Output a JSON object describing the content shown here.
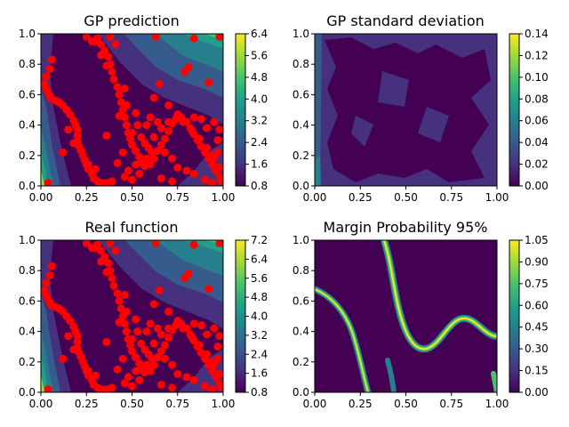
{
  "figure": {
    "layout": "2x2 grid of contour plots with colorbars"
  },
  "chart_data": [
    {
      "type": "heatmap",
      "title": "GP prediction",
      "xlim": [
        0,
        1
      ],
      "ylim": [
        0,
        1
      ],
      "xticks": [
        "0.00",
        "0.25",
        "0.50",
        "0.75",
        "1.00"
      ],
      "yticks": [
        "0.0",
        "0.2",
        "0.4",
        "0.6",
        "0.8",
        "1.0"
      ],
      "colorbar_ticks": [
        "0.8",
        "1.6",
        "2.4",
        "3.2",
        "4.0",
        "4.8",
        "5.6",
        "6.4"
      ],
      "colorbar_range": [
        0.8,
        6.4
      ],
      "colormap": "viridis",
      "scatter_color": "#ff0000",
      "has_scatter": true
    },
    {
      "type": "heatmap",
      "title": "GP standard deviation",
      "xlim": [
        0,
        1
      ],
      "ylim": [
        0,
        1
      ],
      "xticks": [
        "0.00",
        "0.25",
        "0.50",
        "0.75",
        "1.00"
      ],
      "yticks": [
        "0.0",
        "0.2",
        "0.4",
        "0.6",
        "0.8",
        "1.0"
      ],
      "colorbar_ticks": [
        "0.00",
        "0.02",
        "0.04",
        "0.06",
        "0.08",
        "0.10",
        "0.12",
        "0.14"
      ],
      "colorbar_range": [
        0.0,
        0.14
      ],
      "colormap": "viridis",
      "has_scatter": false
    },
    {
      "type": "heatmap",
      "title": "Real function",
      "xlim": [
        0,
        1
      ],
      "ylim": [
        0,
        1
      ],
      "xticks": [
        "0.00",
        "0.25",
        "0.50",
        "0.75",
        "1.00"
      ],
      "yticks": [
        "0.0",
        "0.2",
        "0.4",
        "0.6",
        "0.8",
        "1.0"
      ],
      "colorbar_ticks": [
        "0.8",
        "1.6",
        "2.4",
        "3.2",
        "4.0",
        "4.8",
        "5.6",
        "6.4",
        "7.2"
      ],
      "colorbar_range": [
        0.8,
        7.2
      ],
      "colormap": "viridis",
      "scatter_color": "#ff0000",
      "has_scatter": true
    },
    {
      "type": "heatmap",
      "title": "Margin Probability 95%",
      "xlim": [
        0,
        1
      ],
      "ylim": [
        0,
        1
      ],
      "xticks": [
        "0.00",
        "0.25",
        "0.50",
        "0.75",
        "1.00"
      ],
      "yticks": [
        "0.0",
        "0.2",
        "0.4",
        "0.6",
        "0.8",
        "1.0"
      ],
      "colorbar_ticks": [
        "0.00",
        "0.15",
        "0.30",
        "0.45",
        "0.60",
        "0.75",
        "0.90",
        "1.05"
      ],
      "colorbar_range": [
        0.0,
        1.05
      ],
      "colormap": "viridis",
      "has_scatter": false
    }
  ],
  "scatter_points": [
    [
      0.04,
      0.02
    ],
    [
      0.06,
      0.83
    ],
    [
      0.05,
      0.77
    ],
    [
      0.03,
      0.72
    ],
    [
      0.02,
      0.67
    ],
    [
      0.03,
      0.64
    ],
    [
      0.04,
      0.61
    ],
    [
      0.05,
      0.59
    ],
    [
      0.06,
      0.57
    ],
    [
      0.08,
      0.56
    ],
    [
      0.1,
      0.55
    ],
    [
      0.12,
      0.53
    ],
    [
      0.14,
      0.5
    ],
    [
      0.16,
      0.47
    ],
    [
      0.18,
      0.43
    ],
    [
      0.19,
      0.4
    ],
    [
      0.2,
      0.37
    ],
    [
      0.2,
      0.33
    ],
    [
      0.2,
      0.29
    ],
    [
      0.21,
      0.26
    ],
    [
      0.22,
      0.23
    ],
    [
      0.23,
      0.2
    ],
    [
      0.24,
      0.17
    ],
    [
      0.25,
      0.14
    ],
    [
      0.26,
      0.11
    ],
    [
      0.28,
      0.08
    ],
    [
      0.29,
      0.05
    ],
    [
      0.31,
      0.03
    ],
    [
      0.33,
      0.02
    ],
    [
      0.36,
      0.02
    ],
    [
      0.39,
      0.03
    ],
    [
      0.12,
      0.22
    ],
    [
      0.18,
      0.28
    ],
    [
      0.15,
      0.37
    ],
    [
      0.26,
      0.14
    ],
    [
      0.3,
      0.11
    ],
    [
      0.25,
      0.98
    ],
    [
      0.28,
      0.95
    ],
    [
      0.31,
      0.97
    ],
    [
      0.33,
      0.93
    ],
    [
      0.35,
      0.89
    ],
    [
      0.37,
      0.85
    ],
    [
      0.38,
      0.8
    ],
    [
      0.39,
      0.75
    ],
    [
      0.4,
      0.7
    ],
    [
      0.42,
      0.65
    ],
    [
      0.43,
      0.6
    ],
    [
      0.44,
      0.55
    ],
    [
      0.45,
      0.5
    ],
    [
      0.46,
      0.45
    ],
    [
      0.47,
      0.4
    ],
    [
      0.48,
      0.35
    ],
    [
      0.49,
      0.31
    ],
    [
      0.5,
      0.27
    ],
    [
      0.52,
      0.23
    ],
    [
      0.54,
      0.19
    ],
    [
      0.55,
      0.15
    ],
    [
      0.57,
      0.13
    ],
    [
      0.6,
      0.14
    ],
    [
      0.62,
      0.18
    ],
    [
      0.64,
      0.23
    ],
    [
      0.66,
      0.27
    ],
    [
      0.68,
      0.31
    ],
    [
      0.7,
      0.36
    ],
    [
      0.72,
      0.41
    ],
    [
      0.74,
      0.44
    ],
    [
      0.77,
      0.45
    ],
    [
      0.8,
      0.42
    ],
    [
      0.82,
      0.38
    ],
    [
      0.84,
      0.34
    ],
    [
      0.86,
      0.3
    ],
    [
      0.88,
      0.26
    ],
    [
      0.9,
      0.22
    ],
    [
      0.92,
      0.18
    ],
    [
      0.94,
      0.14
    ],
    [
      0.96,
      0.1
    ],
    [
      0.98,
      0.06
    ],
    [
      0.99,
      0.03
    ],
    [
      0.38,
      0.98
    ],
    [
      0.41,
      0.93
    ],
    [
      0.36,
      0.79
    ],
    [
      0.33,
      0.86
    ],
    [
      0.3,
      0.95
    ],
    [
      0.47,
      0.53
    ],
    [
      0.52,
      0.48
    ],
    [
      0.53,
      0.4
    ],
    [
      0.5,
      0.35
    ],
    [
      0.55,
      0.32
    ],
    [
      0.57,
      0.28
    ],
    [
      0.59,
      0.25
    ],
    [
      0.61,
      0.22
    ],
    [
      0.58,
      0.18
    ],
    [
      0.52,
      0.14
    ],
    [
      0.48,
      0.1
    ],
    [
      0.46,
      0.06
    ],
    [
      0.5,
      0.04
    ],
    [
      0.54,
      0.08
    ],
    [
      0.42,
      0.15
    ],
    [
      0.45,
      0.22
    ],
    [
      0.36,
      0.33
    ],
    [
      0.43,
      0.46
    ],
    [
      0.46,
      0.64
    ],
    [
      0.63,
      0.98
    ],
    [
      0.84,
      0.97
    ],
    [
      0.98,
      0.98
    ],
    [
      0.81,
      0.78
    ],
    [
      0.79,
      0.75
    ],
    [
      0.92,
      0.68
    ],
    [
      0.65,
      0.67
    ],
    [
      0.62,
      0.58
    ],
    [
      0.7,
      0.53
    ],
    [
      0.75,
      0.47
    ],
    [
      0.78,
      0.42
    ],
    [
      0.83,
      0.36
    ],
    [
      0.87,
      0.31
    ],
    [
      0.91,
      0.25
    ],
    [
      0.93,
      0.2
    ],
    [
      0.95,
      0.18
    ],
    [
      0.98,
      0.37
    ],
    [
      0.97,
      0.3
    ],
    [
      0.95,
      0.42
    ],
    [
      0.91,
      0.38
    ],
    [
      0.88,
      0.44
    ],
    [
      0.84,
      0.45
    ],
    [
      0.7,
      0.42
    ],
    [
      0.66,
      0.38
    ],
    [
      0.64,
      0.42
    ],
    [
      0.6,
      0.45
    ],
    [
      0.58,
      0.4
    ],
    [
      0.62,
      0.32
    ],
    [
      0.68,
      0.22
    ],
    [
      0.72,
      0.18
    ],
    [
      0.75,
      0.12
    ],
    [
      0.8,
      0.1
    ],
    [
      0.84,
      0.08
    ],
    [
      0.9,
      0.04
    ],
    [
      0.94,
      0.02
    ],
    [
      0.98,
      0.12
    ],
    [
      0.97,
      0.22
    ],
    [
      0.72,
      0.03
    ],
    [
      0.66,
      0.05
    ]
  ]
}
